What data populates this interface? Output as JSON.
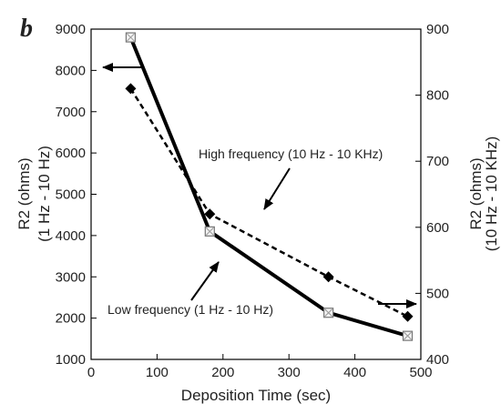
{
  "chart_data": {
    "type": "line",
    "panel_label": "b",
    "xlabel": "Deposition Time (sec)",
    "xlim": [
      0,
      500
    ],
    "xticks": [
      "0",
      "100",
      "200",
      "300",
      "400",
      "500"
    ],
    "ylabel_left": [
      "R2 (ohms)",
      "(1 Hz - 10 Hz)"
    ],
    "ylim_left": [
      1000,
      9000
    ],
    "yticks_left": [
      "1000",
      "2000",
      "3000",
      "4000",
      "5000",
      "6000",
      "7000",
      "8000",
      "9000"
    ],
    "ylabel_right": [
      "R2 (ohms)",
      "(10 Hz - 10 KHz)"
    ],
    "ylim_right": [
      400,
      900
    ],
    "yticks_right": [
      "400",
      "500",
      "600",
      "700",
      "800",
      "900"
    ],
    "grid": false,
    "series": [
      {
        "axis": "left",
        "style": "solid",
        "marker": "open-square",
        "color": "#000000",
        "x": [
          60,
          180,
          360,
          480
        ],
        "y": [
          8800,
          4100,
          2130,
          1570
        ]
      },
      {
        "axis": "right",
        "style": "dashed",
        "marker": "diamond",
        "color": "#000000",
        "x": [
          60,
          180,
          360,
          480
        ],
        "y": [
          810,
          620,
          525,
          465
        ]
      }
    ],
    "annotations": [
      "High frequency (10 Hz - 10 KHz)",
      "Low frequency (1 Hz - 10 Hz)"
    ]
  }
}
